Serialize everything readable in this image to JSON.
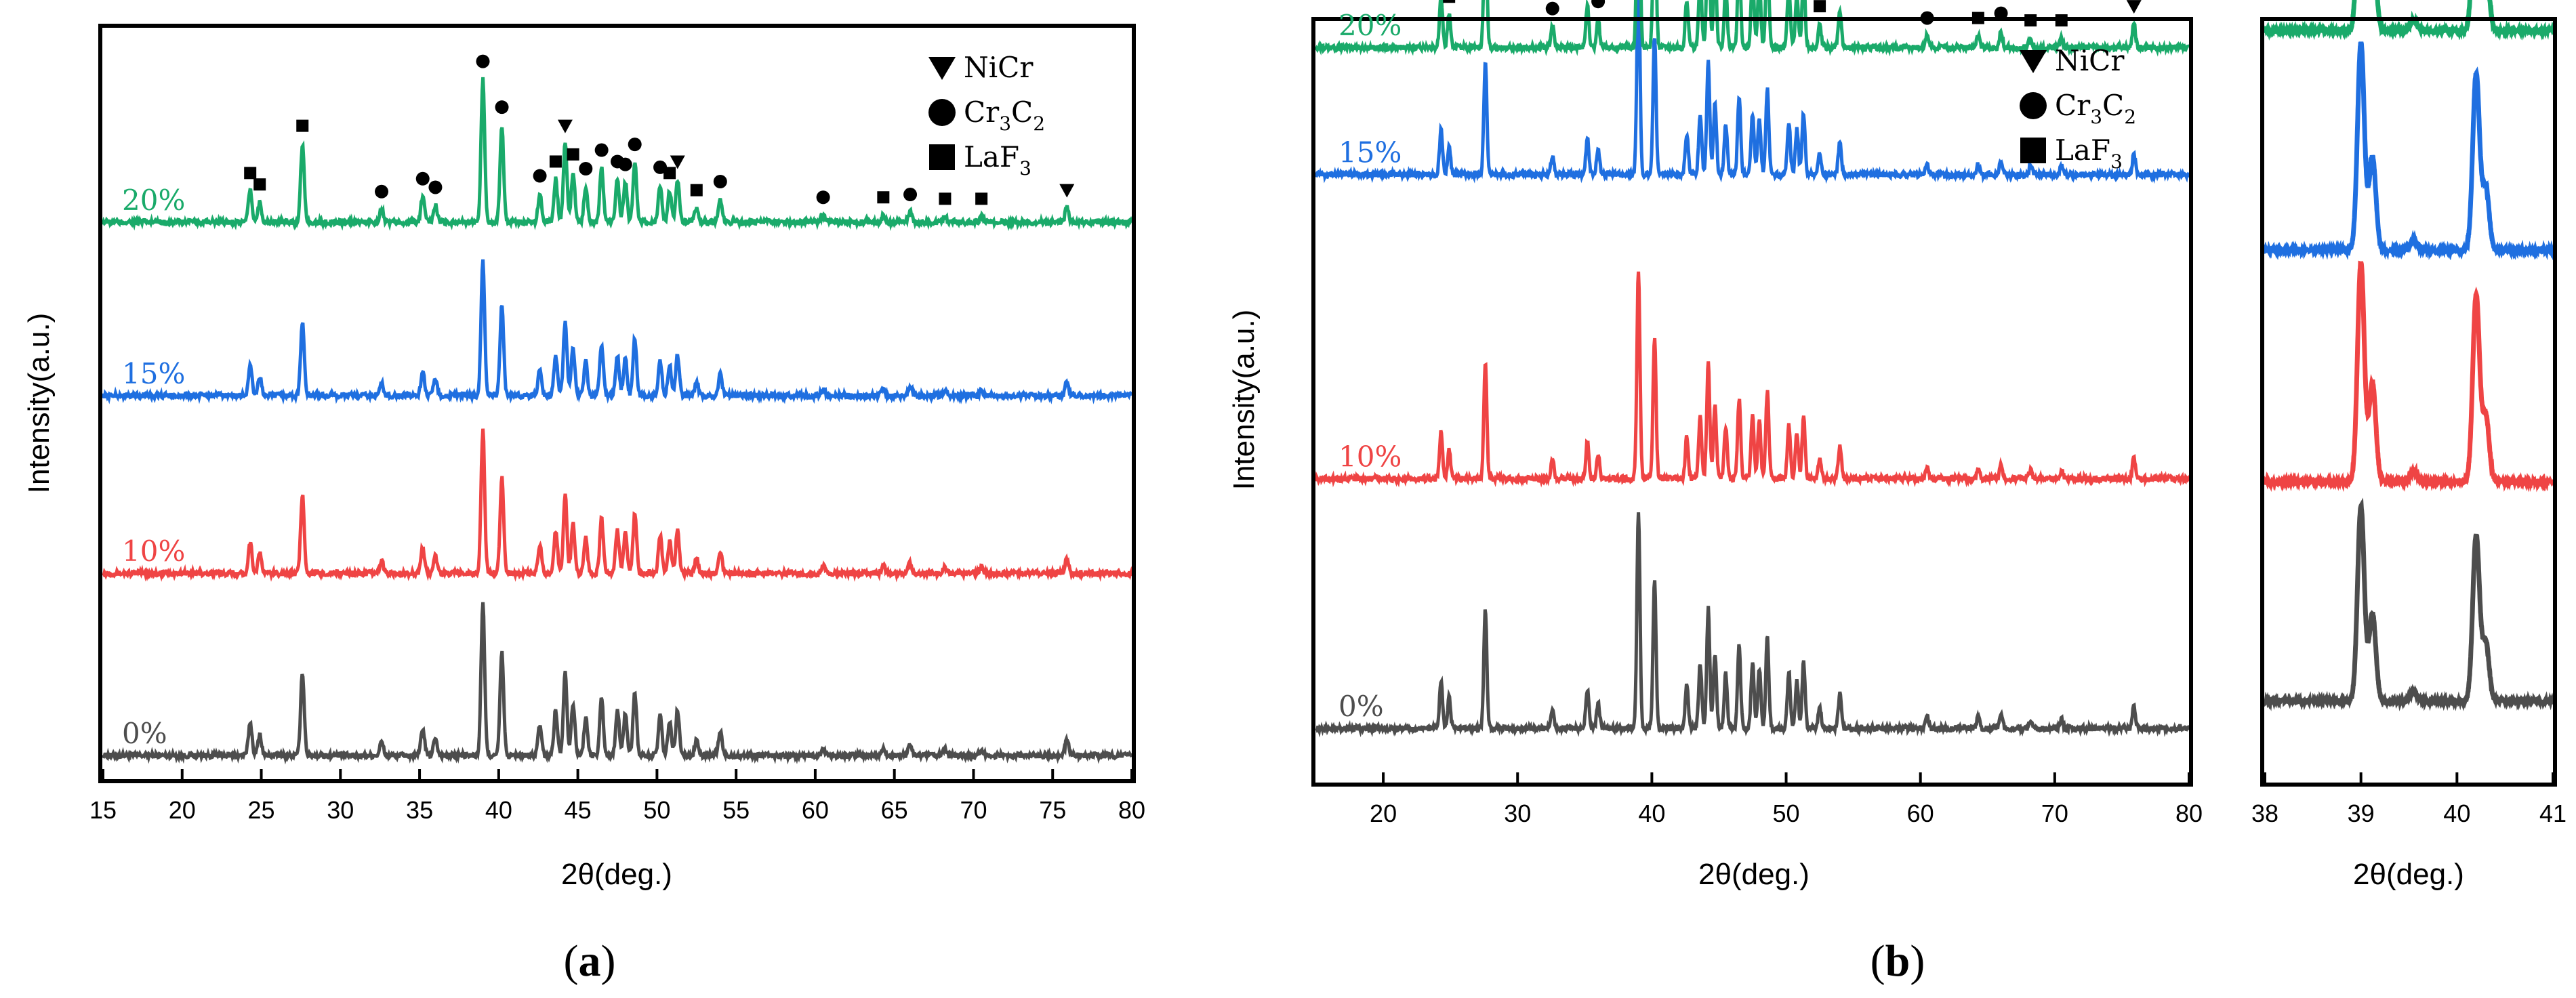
{
  "chart_data": [
    {
      "id": "a",
      "type": "line",
      "panel_label": "a",
      "xlabel": "2θ(deg.)",
      "ylabel": "Intensity(a.u.)",
      "xlim": [
        15,
        80
      ],
      "xticks": [
        15,
        20,
        25,
        30,
        35,
        40,
        45,
        50,
        55,
        60,
        65,
        70,
        75,
        80
      ],
      "series": [
        {
          "name": "0%",
          "color": "#4d4d4d",
          "offset": 0.0,
          "amplitude": 0.35,
          "markers": false
        },
        {
          "name": "10%",
          "color": "#ef4444",
          "offset": 0.42,
          "amplitude": 0.33,
          "markers": false
        },
        {
          "name": "15%",
          "color": "#1f6fe0",
          "offset": 0.83,
          "amplitude": 0.31,
          "markers": false
        },
        {
          "name": "20%",
          "color": "#1aaa6a",
          "offset": 1.23,
          "amplitude": 0.33,
          "markers": true
        }
      ],
      "legend": [
        {
          "symbol": "triangle-down",
          "label": "NiCr",
          "sub": ""
        },
        {
          "symbol": "circle",
          "label": "Cr",
          "sub": "3",
          "label2": "C",
          "sub2": "2"
        },
        {
          "symbol": "square",
          "label": "LaF",
          "sub": "3"
        }
      ]
    },
    {
      "id": "b",
      "type": "line",
      "panel_label": "b",
      "xlabel": "2θ(deg.)",
      "ylabel": "Intensity(a.u.)",
      "xlim": [
        15,
        80
      ],
      "xticks": [
        20,
        30,
        40,
        50,
        60,
        70,
        80
      ],
      "series": [
        {
          "name": "0%",
          "color": "#4d4d4d",
          "offset": 0.0,
          "amplitude": 0.48,
          "markers": false
        },
        {
          "name": "10%",
          "color": "#ef4444",
          "offset": 0.55,
          "amplitude": 0.46,
          "markers": false
        },
        {
          "name": "15%",
          "color": "#1f6fe0",
          "offset": 1.22,
          "amplitude": 0.45,
          "markers": false
        },
        {
          "name": "20%",
          "color": "#1aaa6a",
          "offset": 1.5,
          "amplitude": 0.52,
          "markers": true
        }
      ],
      "legend": [
        {
          "symbol": "triangle-down",
          "label": "NiCr",
          "sub": ""
        },
        {
          "symbol": "circle",
          "label": "Cr",
          "sub": "3",
          "label2": "C",
          "sub2": "2"
        },
        {
          "symbol": "square",
          "label": "LaF",
          "sub": "3"
        }
      ]
    },
    {
      "id": "b-inset",
      "type": "line",
      "xlabel": "2θ(deg.)",
      "xlim": [
        38,
        41
      ],
      "xticks": [
        38,
        39,
        40,
        41
      ],
      "series": [
        {
          "name": "0%",
          "color": "#4d4d4d",
          "offset": 0.0,
          "amplitude": 0.8
        },
        {
          "name": "10%",
          "color": "#ef4444",
          "offset": 0.9,
          "amplitude": 0.9
        },
        {
          "name": "15%",
          "color": "#1f6fe0",
          "offset": 1.85,
          "amplitude": 0.85
        },
        {
          "name": "20%",
          "color": "#1aaa6a",
          "offset": 2.75,
          "amplitude": 0.85
        }
      ]
    }
  ],
  "peaks": [
    {
      "x": 24.3,
      "h": 0.22,
      "phase": "LaF3"
    },
    {
      "x": 24.9,
      "h": 0.14,
      "phase": "LaF3"
    },
    {
      "x": 27.6,
      "h": 0.55,
      "phase": "LaF3"
    },
    {
      "x": 32.6,
      "h": 0.09,
      "phase": "Cr3C2"
    },
    {
      "x": 35.2,
      "h": 0.18,
      "phase": "Cr3C2"
    },
    {
      "x": 36.0,
      "h": 0.12,
      "phase": "Cr3C2"
    },
    {
      "x": 39.0,
      "h": 1.0,
      "phase": "Cr3C2"
    },
    {
      "x": 40.2,
      "h": 0.68,
      "phase": "Cr3C2"
    },
    {
      "x": 42.6,
      "h": 0.2,
      "phase": "Cr3C2"
    },
    {
      "x": 43.6,
      "h": 0.3,
      "phase": "LaF3"
    },
    {
      "x": 44.2,
      "h": 0.55,
      "phase": "NiCr"
    },
    {
      "x": 44.7,
      "h": 0.35,
      "phase": "LaF3"
    },
    {
      "x": 45.5,
      "h": 0.25,
      "phase": "Cr3C2"
    },
    {
      "x": 46.5,
      "h": 0.38,
      "phase": "Cr3C2"
    },
    {
      "x": 47.5,
      "h": 0.3,
      "phase": "Cr3C2"
    },
    {
      "x": 48.0,
      "h": 0.28,
      "phase": "Cr3C2"
    },
    {
      "x": 48.6,
      "h": 0.42,
      "phase": "Cr3C2"
    },
    {
      "x": 50.2,
      "h": 0.26,
      "phase": "Cr3C2"
    },
    {
      "x": 50.8,
      "h": 0.22,
      "phase": "LaF3"
    },
    {
      "x": 51.3,
      "h": 0.3,
      "phase": "NiCr"
    },
    {
      "x": 52.5,
      "h": 0.1,
      "phase": "LaF3"
    },
    {
      "x": 54.0,
      "h": 0.16,
      "phase": "Cr3C2"
    },
    {
      "x": 60.5,
      "h": 0.05,
      "phase": "Cr3C2"
    },
    {
      "x": 64.3,
      "h": 0.05,
      "phase": "LaF3"
    },
    {
      "x": 66.0,
      "h": 0.07,
      "phase": "Cr3C2"
    },
    {
      "x": 68.2,
      "h": 0.04,
      "phase": "LaF3"
    },
    {
      "x": 70.5,
      "h": 0.04,
      "phase": "LaF3"
    },
    {
      "x": 75.9,
      "h": 0.1,
      "phase": "NiCr"
    }
  ],
  "inset_peaks": [
    {
      "x": 39.0,
      "h": 1.0
    },
    {
      "x": 39.12,
      "h": 0.45
    },
    {
      "x": 39.55,
      "h": 0.05
    },
    {
      "x": 40.2,
      "h": 0.85
    },
    {
      "x": 40.3,
      "h": 0.3
    }
  ],
  "colors": {
    "axis": "#000000",
    "marker": "#000000"
  }
}
